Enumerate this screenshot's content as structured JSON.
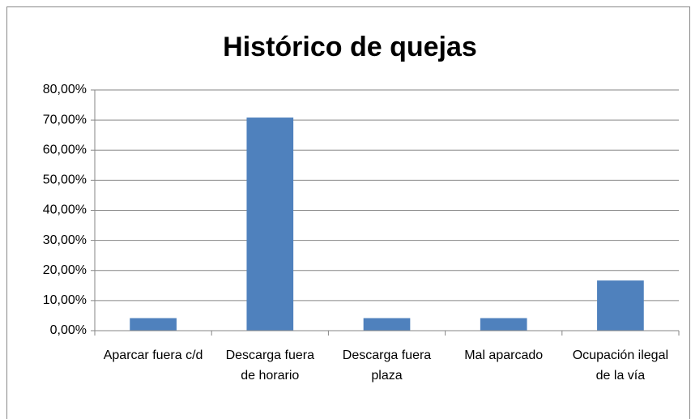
{
  "chart_data": {
    "type": "bar",
    "title": "Histórico de quejas",
    "categories": [
      "Aparcar fuera c/d",
      "Descarga fuera de horario",
      "Descarga fuera plaza",
      "Mal aparcado",
      "Ocupación ilegal de la vía"
    ],
    "values": [
      4.17,
      70.83,
      4.17,
      4.17,
      16.67
    ],
    "color": "#4f81bd",
    "ylim": [
      0,
      80
    ],
    "yticks": [
      {
        "value": 0,
        "label": "0,00%"
      },
      {
        "value": 10,
        "label": "10,00%"
      },
      {
        "value": 20,
        "label": "20,00%"
      },
      {
        "value": 30,
        "label": "30,00%"
      },
      {
        "value": 40,
        "label": "40,00%"
      },
      {
        "value": 50,
        "label": "50,00%"
      },
      {
        "value": 60,
        "label": "60,00%"
      },
      {
        "value": 70,
        "label": "70,00%"
      },
      {
        "value": 80,
        "label": "80,00%"
      }
    ],
    "grid": true
  }
}
